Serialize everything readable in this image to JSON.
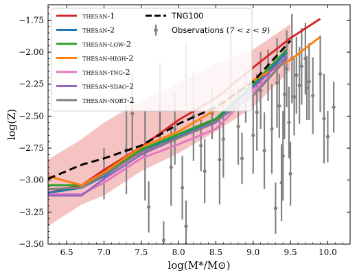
{
  "chart_data": {
    "type": "line",
    "xlabel": "log(M*/M⊙)",
    "ylabel": "log(Z)",
    "xlim": [
      6.25,
      10.3
    ],
    "ylim": [
      -3.5,
      -1.63
    ],
    "xticks": [
      "6.5",
      "7.0",
      "7.5",
      "8.0",
      "8.5",
      "9.0",
      "9.5",
      "10.0"
    ],
    "yticks": [
      "-3.50",
      "-3.25",
      "-3.00",
      "-2.75",
      "-2.50",
      "-2.25",
      "-2.00",
      "-1.75"
    ],
    "legend_placement": "top-left",
    "series": [
      {
        "name": "THESAN-1",
        "color": "#d62728",
        "points": [
          [
            6.25,
            -3.1
          ],
          [
            6.7,
            -3.04
          ],
          [
            7.0,
            -2.92
          ],
          [
            7.5,
            -2.74
          ],
          [
            8.0,
            -2.53
          ],
          [
            8.5,
            -2.36
          ],
          [
            9.0,
            -2.12
          ],
          [
            9.5,
            -1.89
          ],
          [
            9.9,
            -1.74
          ]
        ]
      },
      {
        "name": "THESAN-2",
        "color": "#1f77b4",
        "points": [
          [
            6.25,
            -3.1
          ],
          [
            6.7,
            -3.06
          ],
          [
            7.0,
            -2.97
          ],
          [
            7.5,
            -2.77
          ],
          [
            8.0,
            -2.66
          ],
          [
            8.5,
            -2.53
          ],
          [
            9.0,
            -2.27
          ],
          [
            9.45,
            -2.0
          ]
        ]
      },
      {
        "name": "THESAN-LOW-2",
        "color": "#2ca02c",
        "points": [
          [
            6.25,
            -3.04
          ],
          [
            6.7,
            -3.04
          ],
          [
            7.0,
            -2.95
          ],
          [
            7.5,
            -2.76
          ],
          [
            8.0,
            -2.64
          ],
          [
            8.5,
            -2.52
          ],
          [
            9.0,
            -2.25
          ],
          [
            9.45,
            -1.98
          ]
        ]
      },
      {
        "name": "THESAN-HIGH-2",
        "color": "#ff7f0e",
        "points": [
          [
            6.25,
            -2.97
          ],
          [
            6.7,
            -3.04
          ],
          [
            7.0,
            -2.94
          ],
          [
            7.5,
            -2.74
          ],
          [
            8.0,
            -2.62
          ],
          [
            8.5,
            -2.45
          ],
          [
            9.0,
            -2.22
          ],
          [
            9.5,
            -2.06
          ],
          [
            9.9,
            -1.88
          ]
        ]
      },
      {
        "name": "THESAN-TNG-2",
        "color": "#e377c2",
        "points": [
          [
            6.25,
            -3.11
          ],
          [
            6.7,
            -3.11
          ],
          [
            7.0,
            -3.02
          ],
          [
            7.5,
            -2.83
          ],
          [
            8.0,
            -2.72
          ],
          [
            8.5,
            -2.6
          ],
          [
            9.0,
            -2.31
          ],
          [
            9.45,
            -2.06
          ]
        ]
      },
      {
        "name": "THESAN-SDAO-2",
        "color": "#9467bd",
        "points": [
          [
            6.25,
            -3.12
          ],
          [
            6.7,
            -3.12
          ],
          [
            7.0,
            -2.99
          ],
          [
            7.5,
            -2.8
          ],
          [
            8.0,
            -2.67
          ],
          [
            8.5,
            -2.55
          ],
          [
            9.0,
            -2.28
          ],
          [
            9.45,
            -2.03
          ]
        ]
      },
      {
        "name": "THESAN-NORT-2",
        "color": "#7f7f7f",
        "points": [
          [
            6.25,
            -3.07
          ],
          [
            6.7,
            -3.06
          ],
          [
            7.0,
            -2.96
          ],
          [
            7.5,
            -2.78
          ],
          [
            8.0,
            -2.67
          ],
          [
            8.5,
            -2.54
          ],
          [
            9.0,
            -2.34
          ],
          [
            9.45,
            -2.05
          ]
        ]
      }
    ],
    "tng100": {
      "name": "TNG100",
      "color": "#000000",
      "dash": true,
      "points": [
        [
          6.25,
          -2.99
        ],
        [
          6.7,
          -2.88
        ],
        [
          7.0,
          -2.83
        ],
        [
          7.5,
          -2.73
        ],
        [
          8.0,
          -2.56
        ],
        [
          8.5,
          -2.43
        ],
        [
          9.0,
          -2.23
        ],
        [
          9.5,
          -1.91
        ]
      ]
    },
    "band": {
      "color": "#f4b9b9",
      "upper": [
        [
          6.25,
          -2.84
        ],
        [
          6.7,
          -2.68
        ],
        [
          7.0,
          -2.55
        ],
        [
          7.5,
          -2.38
        ],
        [
          8.0,
          -2.24
        ],
        [
          8.5,
          -2.09
        ],
        [
          9.0,
          -1.98
        ],
        [
          9.5,
          -1.78
        ]
      ],
      "lower": [
        [
          6.25,
          -3.36
        ],
        [
          6.7,
          -3.19
        ],
        [
          7.0,
          -3.12
        ],
        [
          7.5,
          -2.93
        ],
        [
          8.0,
          -2.79
        ],
        [
          8.5,
          -2.62
        ],
        [
          9.0,
          -2.43
        ],
        [
          9.5,
          -2.14
        ]
      ]
    },
    "observations": {
      "name": "Observations (7 < z < 9)",
      "color": "#808080",
      "points": [
        [
          7.0,
          -2.95,
          0.2
        ],
        [
          7.3,
          -2.76,
          0.35
        ],
        [
          7.38,
          -2.48,
          0.32
        ],
        [
          7.55,
          -2.81,
          0.35
        ],
        [
          7.6,
          -3.21,
          0.2
        ],
        [
          7.8,
          -3.47,
          0.15
        ],
        [
          7.75,
          -2.38,
          0.3
        ],
        [
          7.9,
          -2.9,
          0.3
        ],
        [
          7.95,
          -2.6,
          0.28
        ],
        [
          8.05,
          -3.06,
          0.25
        ],
        [
          8.1,
          -3.36,
          0.2
        ],
        [
          8.1,
          -2.18,
          0.25
        ],
        [
          8.2,
          -2.5,
          0.35
        ],
        [
          8.3,
          -2.73,
          0.2
        ],
        [
          8.35,
          -2.93,
          0.25
        ],
        [
          8.45,
          -2.48,
          0.2
        ],
        [
          8.55,
          -2.84,
          0.35
        ],
        [
          8.6,
          -2.68,
          0.3
        ],
        [
          8.7,
          -2.15,
          0.3
        ],
        [
          8.8,
          -2.58,
          0.3
        ],
        [
          8.85,
          -2.83,
          0.2
        ],
        [
          8.9,
          -2.35,
          0.2
        ],
        [
          9.0,
          -2.65,
          0.3
        ],
        [
          9.05,
          -2.47,
          0.3
        ],
        [
          9.1,
          -2.3,
          0.3
        ],
        [
          9.15,
          -2.77,
          0.3
        ],
        [
          9.2,
          -2.18,
          0.2
        ],
        [
          9.25,
          -2.6,
          0.35
        ],
        [
          9.3,
          -3.22,
          0.2
        ],
        [
          9.32,
          -2.24,
          0.35
        ],
        [
          9.35,
          -2.42,
          0.25
        ],
        [
          9.4,
          -2.81,
          0.35
        ],
        [
          9.42,
          -2.33,
          0.35
        ],
        [
          9.45,
          -2.13,
          0.3
        ],
        [
          9.48,
          -2.55,
          0.28
        ],
        [
          9.5,
          -2.95,
          0.25
        ],
        [
          9.52,
          -2.05,
          0.35
        ],
        [
          9.55,
          -2.35,
          0.3
        ],
        [
          9.58,
          -2.18,
          0.3
        ],
        [
          9.62,
          -2.26,
          0.3
        ],
        [
          9.65,
          -2.11,
          0.3
        ],
        [
          9.7,
          -2.05,
          0.28
        ],
        [
          9.72,
          -2.28,
          0.25
        ],
        [
          9.75,
          -2.23,
          0.3
        ],
        [
          9.8,
          -2.34,
          0.3
        ],
        [
          9.9,
          -2.17,
          0.3
        ],
        [
          9.95,
          -2.52,
          0.35
        ],
        [
          10.0,
          -2.66,
          0.2
        ],
        [
          10.08,
          -2.43,
          0.2
        ],
        [
          9.38,
          -3.02,
          0.3
        ]
      ]
    }
  },
  "legend": {
    "items": [
      {
        "label": "THESAN-1",
        "color": "#d62728"
      },
      {
        "label": "THESAN-2",
        "color": "#1f77b4"
      },
      {
        "label": "THESAN-LOW-2",
        "color": "#2ca02c"
      },
      {
        "label": "THESAN-HIGH-2",
        "color": "#ff7f0e"
      },
      {
        "label": "THESAN-TNG-2",
        "color": "#e377c2"
      },
      {
        "label": "THESAN-SDAO-2",
        "color": "#9467bd"
      },
      {
        "label": "THESAN-NORT-2",
        "color": "#7f7f7f"
      }
    ],
    "tng100_label": "TNG100",
    "obs_label_prefix": "Observations (",
    "obs_label_math": "7 < z < 9",
    "obs_label_suffix": ")"
  }
}
